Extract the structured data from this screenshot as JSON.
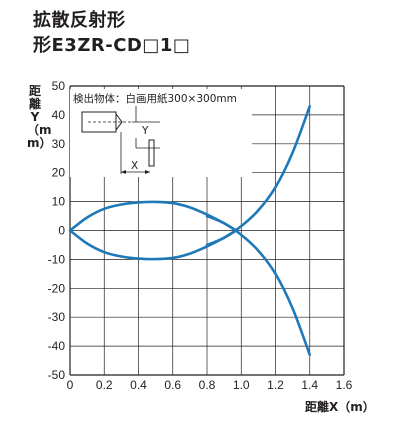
{
  "header": {
    "title_line1": "拡散反射形",
    "title_line2": "形E3ZR-CD□1□"
  },
  "chart_data": {
    "type": "line",
    "xlabel": "距離X（m）",
    "ylabel": "距離Y（mm）",
    "xlim": [
      0,
      1.6
    ],
    "ylim": [
      -50,
      50
    ],
    "x_ticks": [
      "0",
      "0.2",
      "0.4",
      "0.6",
      "0.8",
      "1.0",
      "1.2",
      "1.4",
      "1.6"
    ],
    "y_ticks": [
      "50",
      "40",
      "30",
      "20",
      "10",
      "0",
      "-10",
      "-20",
      "-30",
      "-40",
      "-50"
    ],
    "grid": true,
    "annotation": "検出物体：白画用紙300×300mm",
    "inset_labels": {
      "y": "Y",
      "x": "X"
    },
    "line_color": "#1f78b8",
    "series": [
      {
        "x": [
          0,
          0.1,
          0.2,
          0.3,
          0.4,
          0.5,
          0.6,
          0.7,
          0.8,
          0.9,
          0.97
        ],
        "y": [
          0,
          4.5,
          7.5,
          9.0,
          9.7,
          9.9,
          9.5,
          8.0,
          5.5,
          2.5,
          0
        ]
      },
      {
        "x": [
          0,
          0.1,
          0.2,
          0.3,
          0.4,
          0.5,
          0.6,
          0.7,
          0.8,
          0.9,
          0.97
        ],
        "y": [
          0,
          -4.5,
          -7.5,
          -9.0,
          -9.7,
          -9.9,
          -9.5,
          -8.0,
          -5.5,
          -2.5,
          0
        ]
      },
      {
        "x": [
          0.8,
          0.9,
          1.0,
          1.1,
          1.2,
          1.3,
          1.4
        ],
        "y": [
          -5,
          -2.5,
          1.5,
          7,
          15,
          27,
          43
        ]
      },
      {
        "x": [
          0.8,
          0.9,
          1.0,
          1.1,
          1.2,
          1.3,
          1.4
        ],
        "y": [
          5,
          2.5,
          -1.5,
          -7,
          -15,
          -27,
          -43
        ]
      }
    ]
  }
}
